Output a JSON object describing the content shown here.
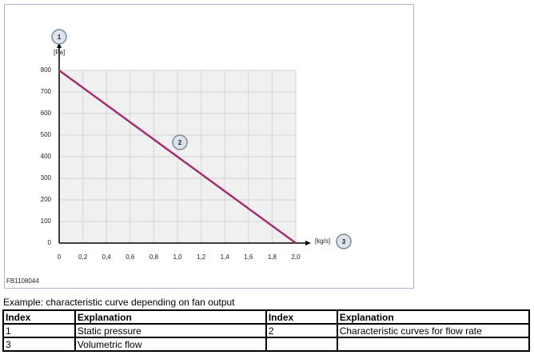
{
  "chart_data": {
    "type": "line",
    "x": [
      0,
      2
    ],
    "series": [
      {
        "name": "2",
        "color": "#a3306e",
        "values": [
          800,
          0
        ]
      }
    ],
    "xlim": [
      0,
      2
    ],
    "ylim": [
      0,
      800
    ],
    "xticks": [
      0,
      {
        "value": 0.2,
        "label": "0,2"
      },
      {
        "value": 0.4,
        "label": "0,4"
      },
      {
        "value": 0.6,
        "label": "0,6"
      },
      {
        "value": 0.8,
        "label": "0,8"
      },
      {
        "value": 1,
        "label": "1,0"
      },
      {
        "value": 1.2,
        "label": "1,2"
      },
      {
        "value": 1.4,
        "label": "1,4"
      },
      {
        "value": 1.6,
        "label": "1,6"
      },
      {
        "value": 1.8,
        "label": "1,8"
      },
      {
        "value": 2,
        "label": "2,0"
      }
    ],
    "yticks": [
      0,
      100,
      200,
      300,
      400,
      500,
      600,
      700,
      800
    ],
    "ylabel": "[Pa]",
    "xlabel": "[kg/s]",
    "y_callout": "1",
    "x_callout": "3",
    "grid": true
  },
  "figure_id": "FB1108044",
  "caption": "Example: characteristic curve depending on fan output",
  "table": {
    "header": [
      "Index",
      "Explanation",
      "Index",
      "Explanation"
    ],
    "rows": [
      [
        "1",
        "Static pressure",
        "2",
        "Characteristic curves for flow rate"
      ],
      [
        "3",
        "Volumetric flow",
        "",
        ""
      ]
    ]
  }
}
